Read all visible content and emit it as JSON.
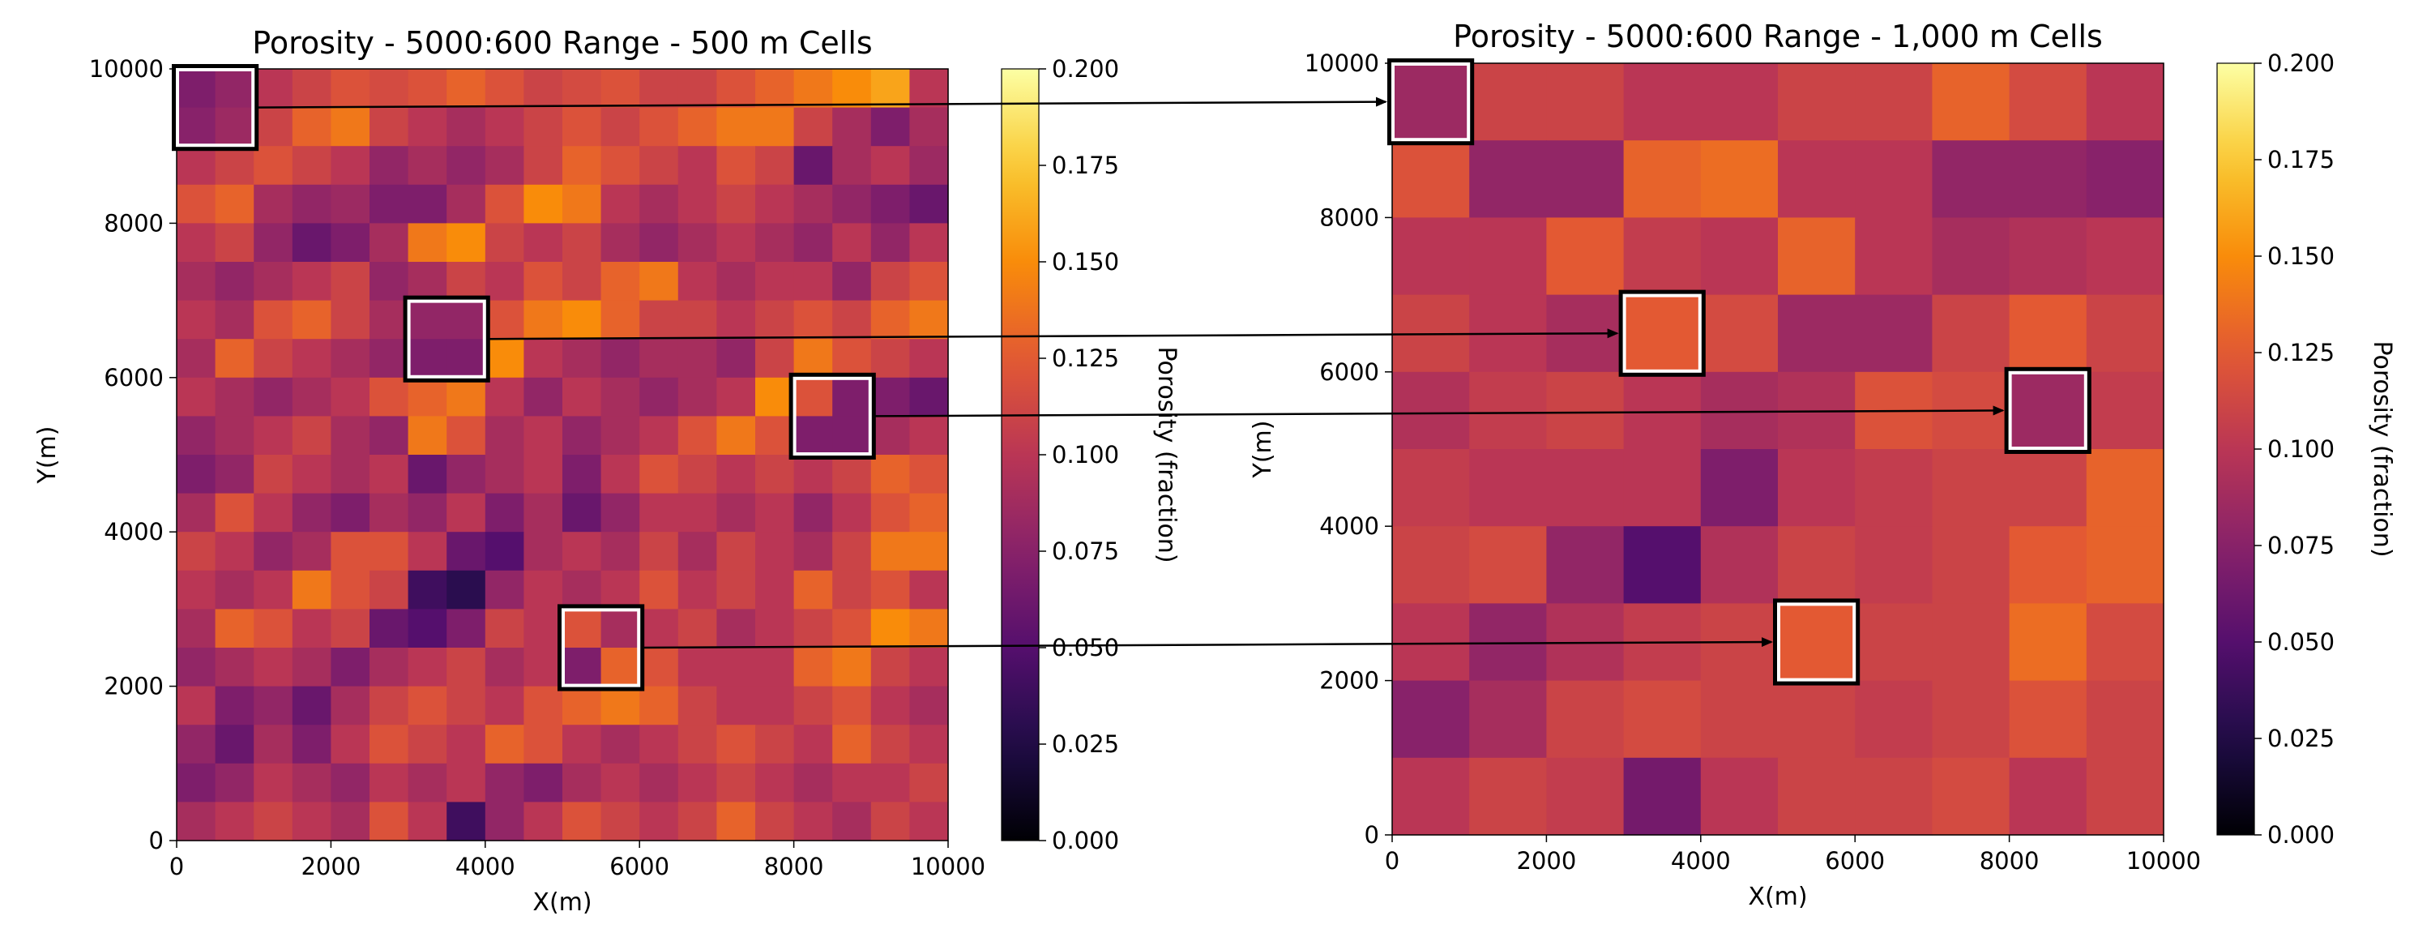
{
  "chart_data": [
    {
      "type": "heatmap",
      "title": "Porosity - 5000:600 Range - 500 m Cells",
      "xlabel": "X(m)",
      "ylabel": "Y(m)",
      "xlim": [
        0,
        10000
      ],
      "ylim": [
        0,
        10000
      ],
      "x_ticks": [
        "0",
        "2000",
        "4000",
        "6000",
        "8000",
        "10000"
      ],
      "y_ticks": [
        "0",
        "2000",
        "4000",
        "6000",
        "8000",
        "10000"
      ],
      "cell_size_m": 500,
      "colormap": "inferno",
      "colorbar": {
        "label": "Porosity (fraction)",
        "range": [
          0.0,
          0.2
        ],
        "ticks": [
          "0.000",
          "0.025",
          "0.050",
          "0.075",
          "0.100",
          "0.125",
          "0.150",
          "0.175",
          "0.200"
        ]
      },
      "grid_rows_top_to_bottom": [
        [
          0.07,
          0.08,
          0.1,
          0.11,
          0.12,
          0.115,
          0.12,
          0.13,
          0.12,
          0.11,
          0.115,
          0.12,
          0.11,
          0.11,
          0.12,
          0.13,
          0.14,
          0.15,
          0.16,
          0.1
        ],
        [
          0.075,
          0.085,
          0.11,
          0.13,
          0.14,
          0.11,
          0.1,
          0.09,
          0.1,
          0.11,
          0.12,
          0.11,
          0.12,
          0.13,
          0.14,
          0.14,
          0.11,
          0.09,
          0.07,
          0.09
        ],
        [
          0.1,
          0.11,
          0.12,
          0.11,
          0.1,
          0.08,
          0.09,
          0.08,
          0.09,
          0.11,
          0.13,
          0.12,
          0.11,
          0.1,
          0.12,
          0.11,
          0.06,
          0.09,
          0.1,
          0.085
        ],
        [
          0.12,
          0.13,
          0.09,
          0.08,
          0.085,
          0.07,
          0.07,
          0.09,
          0.12,
          0.15,
          0.14,
          0.1,
          0.09,
          0.1,
          0.11,
          0.1,
          0.09,
          0.08,
          0.07,
          0.06
        ],
        [
          0.1,
          0.11,
          0.08,
          0.06,
          0.07,
          0.09,
          0.14,
          0.15,
          0.11,
          0.1,
          0.11,
          0.09,
          0.08,
          0.09,
          0.1,
          0.09,
          0.08,
          0.1,
          0.08,
          0.1
        ],
        [
          0.09,
          0.08,
          0.09,
          0.1,
          0.11,
          0.08,
          0.09,
          0.11,
          0.1,
          0.12,
          0.11,
          0.13,
          0.14,
          0.1,
          0.09,
          0.1,
          0.1,
          0.08,
          0.11,
          0.12
        ],
        [
          0.1,
          0.09,
          0.12,
          0.13,
          0.11,
          0.09,
          0.08,
          0.08,
          0.12,
          0.14,
          0.15,
          0.13,
          0.11,
          0.11,
          0.1,
          0.11,
          0.12,
          0.11,
          0.13,
          0.14
        ],
        [
          0.09,
          0.13,
          0.11,
          0.1,
          0.09,
          0.08,
          0.07,
          0.07,
          0.15,
          0.1,
          0.09,
          0.08,
          0.09,
          0.09,
          0.08,
          0.11,
          0.14,
          0.12,
          0.11,
          0.1
        ],
        [
          0.1,
          0.09,
          0.08,
          0.09,
          0.1,
          0.12,
          0.13,
          0.14,
          0.1,
          0.08,
          0.1,
          0.09,
          0.08,
          0.09,
          0.1,
          0.15,
          0.12,
          0.07,
          0.07,
          0.06
        ],
        [
          0.08,
          0.09,
          0.1,
          0.11,
          0.09,
          0.08,
          0.14,
          0.12,
          0.09,
          0.1,
          0.08,
          0.09,
          0.1,
          0.12,
          0.14,
          0.12,
          0.07,
          0.07,
          0.09,
          0.1
        ],
        [
          0.07,
          0.08,
          0.11,
          0.1,
          0.09,
          0.1,
          0.06,
          0.08,
          0.09,
          0.1,
          0.07,
          0.1,
          0.12,
          0.11,
          0.1,
          0.11,
          0.1,
          0.11,
          0.13,
          0.12
        ],
        [
          0.09,
          0.12,
          0.1,
          0.08,
          0.07,
          0.09,
          0.08,
          0.1,
          0.07,
          0.09,
          0.06,
          0.08,
          0.1,
          0.1,
          0.09,
          0.1,
          0.08,
          0.1,
          0.12,
          0.13
        ],
        [
          0.11,
          0.1,
          0.08,
          0.09,
          0.12,
          0.12,
          0.1,
          0.06,
          0.05,
          0.09,
          0.1,
          0.09,
          0.11,
          0.09,
          0.11,
          0.1,
          0.09,
          0.11,
          0.14,
          0.14
        ],
        [
          0.1,
          0.09,
          0.1,
          0.14,
          0.12,
          0.11,
          0.04,
          0.03,
          0.08,
          0.1,
          0.09,
          0.1,
          0.12,
          0.1,
          0.11,
          0.1,
          0.13,
          0.11,
          0.12,
          0.1
        ],
        [
          0.09,
          0.13,
          0.12,
          0.1,
          0.11,
          0.06,
          0.05,
          0.07,
          0.11,
          0.1,
          0.12,
          0.09,
          0.1,
          0.11,
          0.09,
          0.1,
          0.11,
          0.12,
          0.15,
          0.14
        ],
        [
          0.08,
          0.09,
          0.1,
          0.09,
          0.07,
          0.09,
          0.1,
          0.11,
          0.09,
          0.1,
          0.07,
          0.13,
          0.12,
          0.1,
          0.1,
          0.1,
          0.13,
          0.14,
          0.11,
          0.1
        ],
        [
          0.1,
          0.07,
          0.08,
          0.06,
          0.09,
          0.11,
          0.12,
          0.11,
          0.1,
          0.12,
          0.13,
          0.14,
          0.13,
          0.11,
          0.1,
          0.1,
          0.11,
          0.12,
          0.1,
          0.09
        ],
        [
          0.08,
          0.06,
          0.09,
          0.07,
          0.1,
          0.12,
          0.11,
          0.1,
          0.13,
          0.12,
          0.1,
          0.09,
          0.1,
          0.11,
          0.12,
          0.11,
          0.1,
          0.13,
          0.11,
          0.1
        ],
        [
          0.07,
          0.08,
          0.1,
          0.09,
          0.08,
          0.1,
          0.09,
          0.1,
          0.08,
          0.07,
          0.09,
          0.1,
          0.09,
          0.1,
          0.11,
          0.1,
          0.09,
          0.1,
          0.1,
          0.11
        ],
        [
          0.09,
          0.1,
          0.11,
          0.1,
          0.09,
          0.12,
          0.1,
          0.04,
          0.08,
          0.1,
          0.12,
          0.11,
          0.1,
          0.11,
          0.13,
          0.11,
          0.1,
          0.09,
          0.11,
          0.1
        ]
      ]
    },
    {
      "type": "heatmap",
      "title": "Porosity - 5000:600 Range - 1,000 m Cells",
      "xlabel": "X(m)",
      "ylabel": "Y(m)",
      "xlim": [
        0,
        10000
      ],
      "ylim": [
        0,
        10000
      ],
      "x_ticks": [
        "0",
        "2000",
        "4000",
        "6000",
        "8000",
        "10000"
      ],
      "y_ticks": [
        "0",
        "2000",
        "4000",
        "6000",
        "8000",
        "10000"
      ],
      "cell_size_m": 1000,
      "colormap": "inferno",
      "colorbar": {
        "label": "Porosity (fraction)",
        "range": [
          0.0,
          0.2
        ],
        "ticks": [
          "0.000",
          "0.025",
          "0.050",
          "0.075",
          "0.100",
          "0.125",
          "0.150",
          "0.175",
          "0.200"
        ]
      },
      "grid_rows_top_to_bottom": [
        [
          0.085,
          0.11,
          0.11,
          0.1,
          0.1,
          0.11,
          0.11,
          0.13,
          0.115,
          0.1
        ],
        [
          0.12,
          0.08,
          0.08,
          0.13,
          0.135,
          0.1,
          0.1,
          0.08,
          0.08,
          0.075
        ],
        [
          0.1,
          0.1,
          0.125,
          0.105,
          0.1,
          0.13,
          0.1,
          0.09,
          0.095,
          0.1
        ],
        [
          0.11,
          0.1,
          0.09,
          0.125,
          0.115,
          0.085,
          0.085,
          0.11,
          0.125,
          0.11
        ],
        [
          0.095,
          0.105,
          0.11,
          0.1,
          0.09,
          0.095,
          0.12,
          0.115,
          0.085,
          0.105
        ],
        [
          0.105,
          0.1,
          0.1,
          0.1,
          0.07,
          0.1,
          0.105,
          0.11,
          0.11,
          0.13
        ],
        [
          0.11,
          0.115,
          0.08,
          0.05,
          0.095,
          0.11,
          0.105,
          0.11,
          0.125,
          0.13
        ],
        [
          0.1,
          0.08,
          0.095,
          0.105,
          0.11,
          0.125,
          0.11,
          0.11,
          0.135,
          0.115
        ],
        [
          0.075,
          0.09,
          0.11,
          0.115,
          0.11,
          0.11,
          0.105,
          0.11,
          0.12,
          0.11
        ],
        [
          0.1,
          0.11,
          0.105,
          0.065,
          0.1,
          0.11,
          0.11,
          0.115,
          0.1,
          0.11
        ]
      ]
    }
  ],
  "annotations": [
    {
      "from_panel": 0,
      "from_box": [
        0,
        9000,
        1000,
        10000
      ],
      "to_panel": 1,
      "to_box": [
        0,
        9000,
        1000,
        10000
      ]
    },
    {
      "from_panel": 0,
      "from_box": [
        3000,
        6000,
        4000,
        7000
      ],
      "to_panel": 1,
      "to_box": [
        3000,
        6000,
        4000,
        7000
      ]
    },
    {
      "from_panel": 0,
      "from_box": [
        8000,
        5000,
        9000,
        6000
      ],
      "to_panel": 1,
      "to_box": [
        8000,
        5000,
        9000,
        6000
      ]
    },
    {
      "from_panel": 0,
      "from_box": [
        5000,
        2000,
        6000,
        3000
      ],
      "to_panel": 1,
      "to_box": [
        5000,
        2000,
        6000,
        3000
      ]
    }
  ]
}
